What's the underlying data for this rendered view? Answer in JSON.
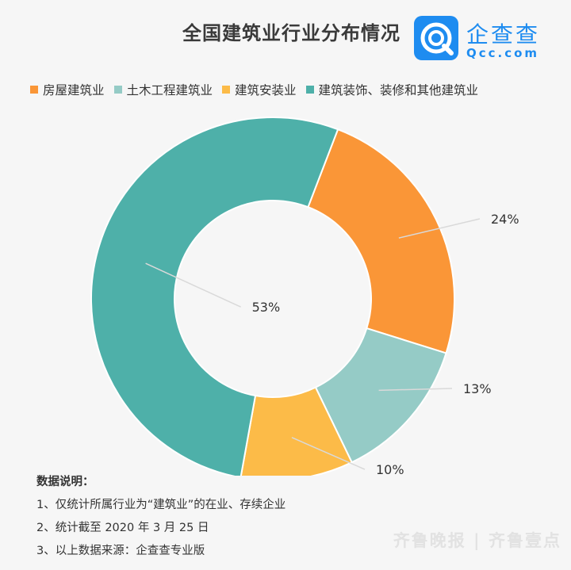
{
  "title": "全国建筑业行业分布情况",
  "logo": {
    "name": "企查查",
    "sub": "Qcc.com"
  },
  "chart_data": {
    "type": "pie",
    "donut": true,
    "legend_position": "top",
    "slices": [
      {
        "name": "房屋建筑业",
        "value": 24,
        "label": "24%",
        "color": "#fa9637"
      },
      {
        "name": "土木工程建筑业",
        "value": 13,
        "label": "13%",
        "color": "#95cbc6"
      },
      {
        "name": "建筑安装业",
        "value": 10,
        "label": "10%",
        "color": "#fcbb48"
      },
      {
        "name": "建筑装饰、装修和其他建筑业",
        "value": 53,
        "label": "53%",
        "color": "#4eb0a9"
      }
    ]
  },
  "notes": {
    "heading": "数据说明：",
    "items": [
      "1、仅统计所属行业为“建筑业”的在业、存续企业",
      "2、统计截至 2020 年 3 月 25 日",
      "3、以上数据来源：企查查专业版"
    ]
  },
  "watermark": "齐鲁晚报 | 齐鲁壹点"
}
